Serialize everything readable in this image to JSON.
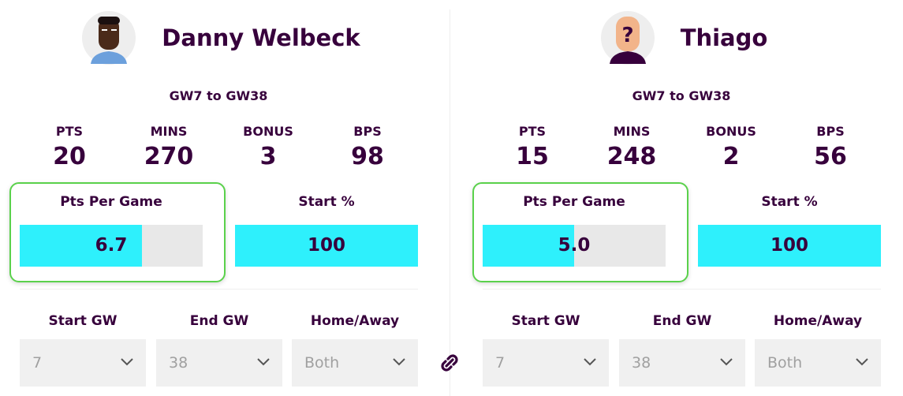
{
  "players": [
    {
      "name": "Danny Welbeck",
      "period": "GW7 to GW38",
      "stats": [
        {
          "label": "PTS",
          "value": 20
        },
        {
          "label": "MINS",
          "value": 270
        },
        {
          "label": "BONUS",
          "value": 3
        },
        {
          "label": "BPS",
          "value": 98
        }
      ],
      "meters": [
        {
          "label": "Pts Per Game",
          "value": 6.7,
          "value_label": "6.7",
          "range": [
            0,
            10
          ]
        },
        {
          "label": "Start %",
          "value": 100,
          "range": [
            0,
            100
          ]
        }
      ],
      "filters": [
        {
          "label": "Start GW",
          "selected": "7"
        },
        {
          "label": "End GW",
          "selected": "38"
        },
        {
          "label": "Home/Away",
          "selected": "Both"
        }
      ]
    },
    {
      "name": "Thiago",
      "period": "GW7 to GW38",
      "stats": [
        {
          "label": "PTS",
          "value": 15
        },
        {
          "label": "MINS",
          "value": 248
        },
        {
          "label": "BONUS",
          "value": 2
        },
        {
          "label": "BPS",
          "value": 56
        }
      ],
      "meters": [
        {
          "label": "Pts Per Game",
          "value": 5,
          "value_label": "5.0",
          "range": [
            0,
            10
          ]
        },
        {
          "label": "Start %",
          "value": 100,
          "range": [
            0,
            100
          ]
        }
      ],
      "filters": [
        {
          "label": "Start GW",
          "selected": "7"
        },
        {
          "label": "End GW",
          "selected": "38"
        },
        {
          "label": "Home/Away",
          "selected": "Both"
        }
      ]
    }
  ]
}
